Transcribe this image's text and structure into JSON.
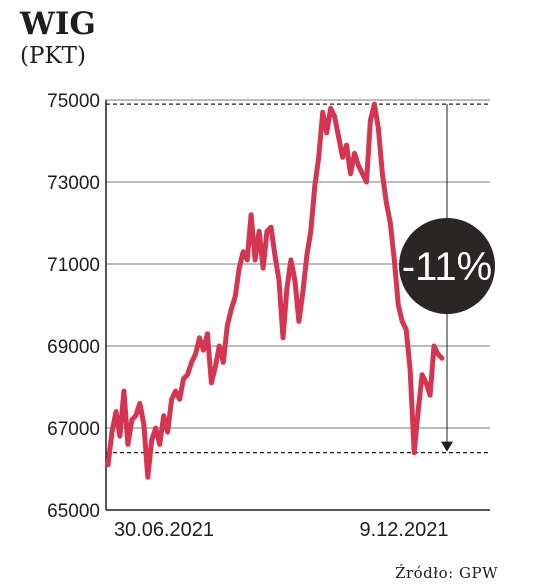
{
  "chart_data": {
    "type": "line",
    "title": "WIG",
    "ylabel": "(PKT)",
    "source": "Źródło: GPW",
    "ylim": [
      65000,
      75000
    ],
    "yticks": [
      75000,
      73000,
      71000,
      69000,
      67000,
      65000
    ],
    "xtick_labels": [
      "30.06.2021",
      "9.12.2021"
    ],
    "grid": true,
    "annotation": {
      "label": "-11%",
      "high_reference": 74900,
      "low_reference": 66400
    },
    "series": [
      {
        "color": "#d63552",
        "values": [
          66100,
          66900,
          67400,
          66800,
          67900,
          66600,
          67200,
          67300,
          67600,
          67100,
          65800,
          66700,
          67000,
          66600,
          67300,
          66900,
          67700,
          67900,
          67700,
          68200,
          68300,
          68600,
          68800,
          69200,
          68900,
          69300,
          68100,
          68500,
          69000,
          68600,
          69500,
          69900,
          70200,
          70900,
          71300,
          71100,
          72200,
          71100,
          71800,
          70900,
          71800,
          71900,
          71200,
          70600,
          69200,
          70400,
          71100,
          70600,
          69600,
          70300,
          71200,
          71800,
          72900,
          73600,
          74700,
          74200,
          74800,
          74600,
          74100,
          73600,
          73900,
          73200,
          73700,
          73400,
          73200,
          73000,
          74500,
          74900,
          74300,
          73200,
          72500,
          72000,
          71100,
          70000,
          69600,
          69400,
          68400,
          66400,
          67400,
          68300,
          68100,
          67800,
          69000,
          68800,
          68700
        ]
      }
    ]
  }
}
